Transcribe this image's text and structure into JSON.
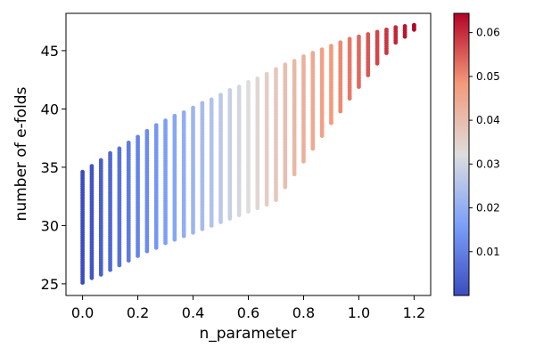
{
  "chart_data": {
    "type": "scatter",
    "xlabel": "n_parameter",
    "ylabel": "number of e-folds",
    "xlim": [
      -0.06,
      1.26
    ],
    "ylim": [
      24.0,
      48.2
    ],
    "x_ticks": [
      0.0,
      0.2,
      0.4,
      0.6,
      0.8,
      1.0,
      1.2
    ],
    "x_tick_labels": [
      "0.0",
      "0.2",
      "0.4",
      "0.6",
      "0.8",
      "1.0",
      "1.2"
    ],
    "y_ticks": [
      25,
      30,
      35,
      40,
      45
    ],
    "y_tick_labels": [
      "25",
      "30",
      "35",
      "40",
      "45"
    ],
    "grid": false,
    "colorbar": {
      "colormap": "coolwarm",
      "range": [
        0.0,
        0.0644
      ],
      "ticks": [
        0.01,
        0.02,
        0.03,
        0.04,
        0.05,
        0.06
      ],
      "tick_labels": [
        "0.01",
        "0.02",
        "0.03",
        "0.04",
        "0.05",
        "0.06"
      ]
    },
    "columns": [
      {
        "x": 0.0,
        "y_min": 25.1,
        "y_max": 34.6,
        "c": 0.0
      },
      {
        "x": 0.0333,
        "y_min": 25.5,
        "y_max": 35.1,
        "c": 0.0018
      },
      {
        "x": 0.0667,
        "y_min": 25.8,
        "y_max": 35.6,
        "c": 0.0036
      },
      {
        "x": 0.1,
        "y_min": 26.2,
        "y_max": 36.2,
        "c": 0.0054
      },
      {
        "x": 0.1333,
        "y_min": 26.6,
        "y_max": 36.6,
        "c": 0.0072
      },
      {
        "x": 0.1667,
        "y_min": 27.0,
        "y_max": 37.1,
        "c": 0.009
      },
      {
        "x": 0.2,
        "y_min": 27.4,
        "y_max": 37.6,
        "c": 0.0107
      },
      {
        "x": 0.2333,
        "y_min": 27.8,
        "y_max": 38.1,
        "c": 0.0125
      },
      {
        "x": 0.2667,
        "y_min": 28.1,
        "y_max": 38.6,
        "c": 0.0143
      },
      {
        "x": 0.3,
        "y_min": 28.5,
        "y_max": 39.0,
        "c": 0.0161
      },
      {
        "x": 0.3333,
        "y_min": 28.8,
        "y_max": 39.4,
        "c": 0.0179
      },
      {
        "x": 0.3667,
        "y_min": 29.1,
        "y_max": 39.7,
        "c": 0.0197
      },
      {
        "x": 0.4,
        "y_min": 29.4,
        "y_max": 40.1,
        "c": 0.0215
      },
      {
        "x": 0.4333,
        "y_min": 29.7,
        "y_max": 40.5,
        "c": 0.0233
      },
      {
        "x": 0.4667,
        "y_min": 30.0,
        "y_max": 40.8,
        "c": 0.0251
      },
      {
        "x": 0.5,
        "y_min": 30.3,
        "y_max": 41.2,
        "c": 0.0268
      },
      {
        "x": 0.5333,
        "y_min": 30.6,
        "y_max": 41.6,
        "c": 0.0286
      },
      {
        "x": 0.5667,
        "y_min": 30.9,
        "y_max": 41.9,
        "c": 0.0304
      },
      {
        "x": 0.6,
        "y_min": 31.2,
        "y_max": 42.3,
        "c": 0.0322
      },
      {
        "x": 0.6333,
        "y_min": 31.5,
        "y_max": 42.6,
        "c": 0.034
      },
      {
        "x": 0.6667,
        "y_min": 31.8,
        "y_max": 43.0,
        "c": 0.0358
      },
      {
        "x": 0.7,
        "y_min": 32.2,
        "y_max": 43.4,
        "c": 0.0376
      },
      {
        "x": 0.7333,
        "y_min": 33.3,
        "y_max": 43.8,
        "c": 0.0394
      },
      {
        "x": 0.7667,
        "y_min": 34.4,
        "y_max": 44.1,
        "c": 0.0412
      },
      {
        "x": 0.8,
        "y_min": 35.5,
        "y_max": 44.5,
        "c": 0.0429
      },
      {
        "x": 0.8333,
        "y_min": 36.6,
        "y_max": 44.8,
        "c": 0.0447
      },
      {
        "x": 0.8667,
        "y_min": 37.7,
        "y_max": 45.1,
        "c": 0.0465
      },
      {
        "x": 0.9,
        "y_min": 38.8,
        "y_max": 45.4,
        "c": 0.0483
      },
      {
        "x": 0.9333,
        "y_min": 39.8,
        "y_max": 45.7,
        "c": 0.0501
      },
      {
        "x": 0.9667,
        "y_min": 40.9,
        "y_max": 46.0,
        "c": 0.0519
      },
      {
        "x": 1.0,
        "y_min": 41.9,
        "y_max": 46.2,
        "c": 0.0537
      },
      {
        "x": 1.0333,
        "y_min": 42.9,
        "y_max": 46.4,
        "c": 0.0555
      },
      {
        "x": 1.0667,
        "y_min": 43.9,
        "y_max": 46.6,
        "c": 0.0573
      },
      {
        "x": 1.1,
        "y_min": 44.8,
        "y_max": 46.8,
        "c": 0.059
      },
      {
        "x": 1.1333,
        "y_min": 45.7,
        "y_max": 47.0,
        "c": 0.0608
      },
      {
        "x": 1.1667,
        "y_min": 46.2,
        "y_max": 47.1,
        "c": 0.0626
      },
      {
        "x": 1.2,
        "y_min": 46.8,
        "y_max": 47.2,
        "c": 0.0644
      }
    ]
  }
}
